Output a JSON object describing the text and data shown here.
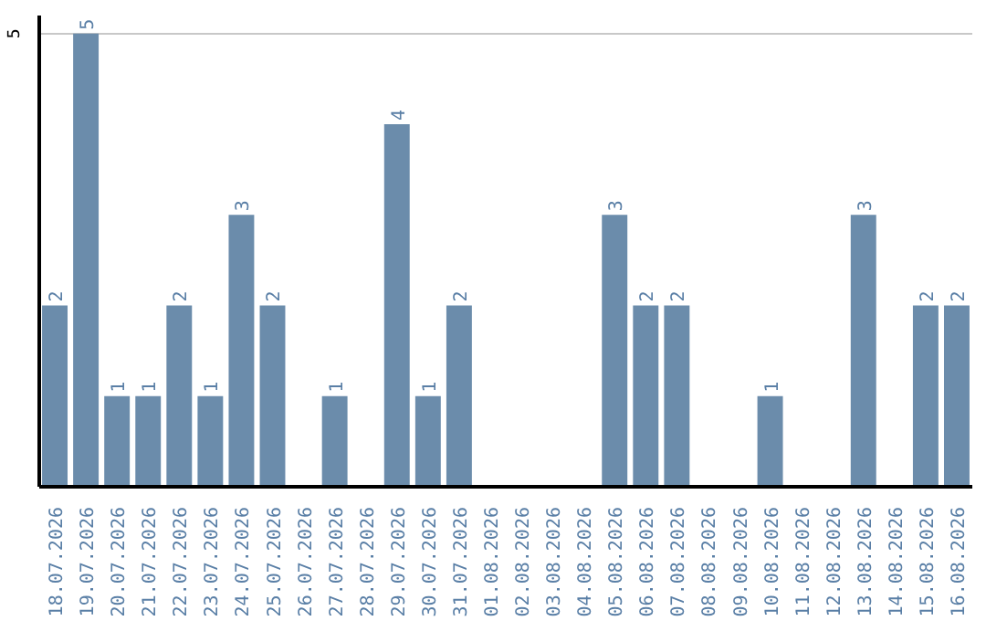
{
  "chart_data": {
    "type": "bar",
    "categories": [
      "18.07.2026",
      "19.07.2026",
      "20.07.2026",
      "21.07.2026",
      "22.07.2026",
      "23.07.2026",
      "24.07.2026",
      "25.07.2026",
      "26.07.2026",
      "27.07.2026",
      "28.07.2026",
      "29.07.2026",
      "30.07.2026",
      "31.07.2026",
      "01.08.2026",
      "02.08.2026",
      "03.08.2026",
      "04.08.2026",
      "05.08.2026",
      "06.08.2026",
      "07.08.2026",
      "08.08.2026",
      "09.08.2026",
      "10.08.2026",
      "11.08.2026",
      "12.08.2026",
      "13.08.2026",
      "14.08.2026",
      "15.08.2026",
      "16.08.2026"
    ],
    "values": [
      2,
      5,
      1,
      1,
      2,
      1,
      3,
      2,
      0,
      1,
      0,
      4,
      1,
      2,
      0,
      0,
      0,
      0,
      3,
      2,
      2,
      0,
      0,
      1,
      0,
      0,
      3,
      0,
      2,
      2
    ],
    "value_labels": [
      "2",
      "5",
      "1",
      "1",
      "2",
      "1",
      "3",
      "2",
      null,
      "1",
      null,
      "4",
      "1",
      "2",
      null,
      null,
      null,
      null,
      "3",
      "2",
      "2",
      null,
      null,
      "1",
      null,
      null,
      "3",
      null,
      "2",
      "2"
    ],
    "color": "#6b8cab",
    "ylim": [
      0,
      5.2
    ],
    "yticks": [
      5
    ],
    "grid": "y"
  }
}
